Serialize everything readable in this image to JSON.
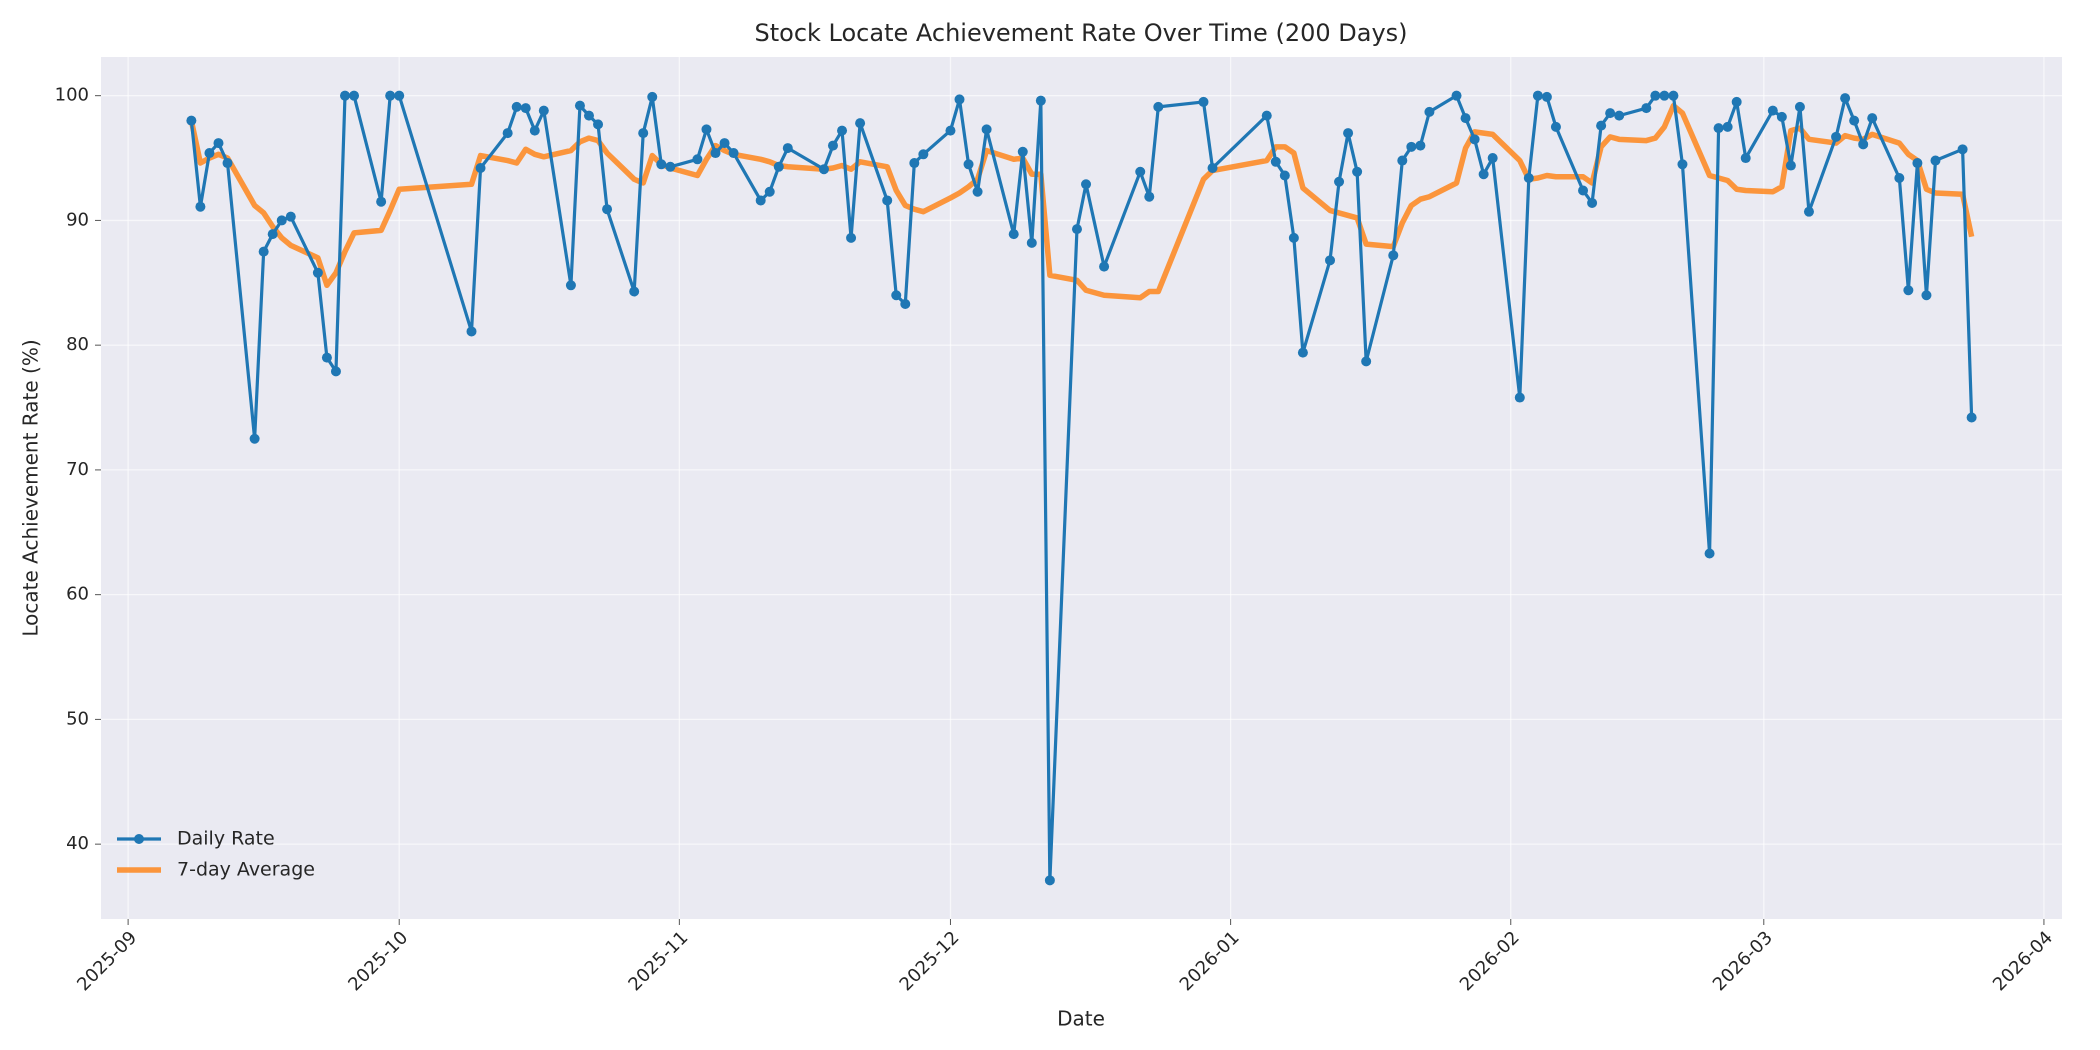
{
  "chart_data": {
    "type": "line",
    "title": "Stock Locate Achievement Rate Over Time (200 Days)",
    "x_label": "Date",
    "y_label": "Locate Achievement Rate (%)",
    "x": [
      "2025-09-08",
      "2025-09-09",
      "2025-09-10",
      "2025-09-11",
      "2025-09-12",
      "2025-09-15",
      "2025-09-16",
      "2025-09-17",
      "2025-09-18",
      "2025-09-19",
      "2025-09-22",
      "2025-09-23",
      "2025-09-24",
      "2025-09-25",
      "2025-09-26",
      "2025-09-29",
      "2025-09-30",
      "2025-10-01",
      "2025-10-09",
      "2025-10-10",
      "2025-10-13",
      "2025-10-14",
      "2025-10-15",
      "2025-10-16",
      "2025-10-17",
      "2025-10-20",
      "2025-10-21",
      "2025-10-22",
      "2025-10-23",
      "2025-10-24",
      "2025-10-27",
      "2025-10-28",
      "2025-10-29",
      "2025-10-30",
      "2025-10-31",
      "2025-11-03",
      "2025-11-04",
      "2025-11-05",
      "2025-11-06",
      "2025-11-07",
      "2025-11-10",
      "2025-11-11",
      "2025-11-12",
      "2025-11-13",
      "2025-11-17",
      "2025-11-18",
      "2025-11-19",
      "2025-11-20",
      "2025-11-21",
      "2025-11-24",
      "2025-11-25",
      "2025-11-26",
      "2025-11-27",
      "2025-11-28",
      "2025-12-01",
      "2025-12-02",
      "2025-12-03",
      "2025-12-04",
      "2025-12-05",
      "2025-12-08",
      "2025-12-09",
      "2025-12-10",
      "2025-12-11",
      "2025-12-12",
      "2025-12-15",
      "2025-12-16",
      "2025-12-18",
      "2025-12-22",
      "2025-12-23",
      "2025-12-24",
      "2025-12-29",
      "2025-12-30",
      "2026-01-05",
      "2026-01-06",
      "2026-01-07",
      "2026-01-08",
      "2026-01-09",
      "2026-01-12",
      "2026-01-13",
      "2026-01-14",
      "2026-01-15",
      "2026-01-16",
      "2026-01-19",
      "2026-01-20",
      "2026-01-21",
      "2026-01-22",
      "2026-01-23",
      "2026-01-26",
      "2026-01-27",
      "2026-01-28",
      "2026-01-29",
      "2026-01-30",
      "2026-02-02",
      "2026-02-03",
      "2026-02-04",
      "2026-02-05",
      "2026-02-06",
      "2026-02-09",
      "2026-02-10",
      "2026-02-11",
      "2026-02-12",
      "2026-02-13",
      "2026-02-16",
      "2026-02-17",
      "2026-02-18",
      "2026-02-19",
      "2026-02-20",
      "2026-02-23",
      "2026-02-24",
      "2026-02-25",
      "2026-02-26",
      "2026-02-27",
      "2026-03-02",
      "2026-03-03",
      "2026-03-04",
      "2026-03-05",
      "2026-03-06",
      "2026-03-09",
      "2026-03-10",
      "2026-03-11",
      "2026-03-12",
      "2026-03-13",
      "2026-03-16",
      "2026-03-17",
      "2026-03-18",
      "2026-03-19",
      "2026-03-20",
      "2026-03-23",
      "2026-03-24"
    ],
    "series": [
      {
        "name": "Daily Rate",
        "color": "#1f77b4",
        "marker": true,
        "values": [
          98.0,
          91.1,
          95.4,
          96.2,
          94.6,
          72.5,
          87.5,
          88.9,
          90.0,
          90.3,
          85.8,
          79.0,
          77.9,
          100,
          100,
          91.5,
          100,
          100,
          81.1,
          94.2,
          97.0,
          99.1,
          99.0,
          97.2,
          98.8,
          84.8,
          99.2,
          98.4,
          97.7,
          90.9,
          84.3,
          97.0,
          99.9,
          94.5,
          94.3,
          94.9,
          97.3,
          95.4,
          96.2,
          95.4,
          91.6,
          92.3,
          94.3,
          95.8,
          94.1,
          96.0,
          97.2,
          88.6,
          97.8,
          91.6,
          84.0,
          83.3,
          94.6,
          95.3,
          97.2,
          99.7,
          94.5,
          92.3,
          97.3,
          88.9,
          95.5,
          88.2,
          99.6,
          37.1,
          89.3,
          92.9,
          86.3,
          93.9,
          91.9,
          99.1,
          99.5,
          94.2,
          98.4,
          94.7,
          93.6,
          88.6,
          79.4,
          86.8,
          93.1,
          97.0,
          93.9,
          78.7,
          87.2,
          94.8,
          95.9,
          96.0,
          98.7,
          100,
          98.2,
          96.5,
          93.7,
          95.0,
          75.8,
          93.4,
          100,
          99.9,
          97.5,
          92.4,
          91.4,
          97.6,
          98.6,
          98.4,
          99.0,
          100,
          100,
          100,
          94.5,
          63.3,
          97.4,
          97.5,
          99.5,
          95.0,
          98.8,
          98.3,
          94.4,
          99.1,
          90.7,
          96.7,
          99.8,
          98.0,
          96.1,
          98.2,
          93.4,
          84.4,
          94.6,
          84.0,
          94.8,
          95.7,
          74.2
        ]
      },
      {
        "name": "7-day Average",
        "color": "#ff7f0e",
        "marker": false,
        "values": [
          98.0,
          94.6,
          95.0,
          95.3,
          95.0,
          91.2,
          90.6,
          89.5,
          88.6,
          88.0,
          87.0,
          84.8,
          85.8,
          87.5,
          89.0,
          89.2,
          90.8,
          92.5,
          92.9,
          95.2,
          94.8,
          94.6,
          95.7,
          95.3,
          95.1,
          95.6,
          96.3,
          96.6,
          96.4,
          95.4,
          93.3,
          93.0,
          95.2,
          94.5,
          94.2,
          93.6,
          94.9,
          96.0,
          95.6,
          95.3,
          94.9,
          94.7,
          94.4,
          94.3,
          94.1,
          94.2,
          94.4,
          94.1,
          94.7,
          94.3,
          92.4,
          91.2,
          90.9,
          90.7,
          91.8,
          92.2,
          92.7,
          93.3,
          95.6,
          94.9,
          95.0,
          93.7,
          93.7,
          85.6,
          85.2,
          84.4,
          84.0,
          83.8,
          84.3,
          84.3,
          93.3,
          94.0,
          94.8,
          95.9,
          95.9,
          95.4,
          92.6,
          90.8,
          90.6,
          90.4,
          90.2,
          88.1,
          87.9,
          89.8,
          91.2,
          91.7,
          91.9,
          93.0,
          95.8,
          97.1,
          97.0,
          96.9,
          94.8,
          93.3,
          93.4,
          93.6,
          93.5,
          93.5,
          93.0,
          95.9,
          96.7,
          96.5,
          96.4,
          96.6,
          97.5,
          99.2,
          98.6,
          93.6,
          93.4,
          93.2,
          92.5,
          92.4,
          92.3,
          92.7,
          97.2,
          97.4,
          96.5,
          96.2,
          96.8,
          96.6,
          96.5,
          96.9,
          96.2,
          95.3,
          94.8,
          92.5,
          92.2,
          92.1,
          88.7
        ]
      }
    ],
    "xlim": [
      "2025-08-29",
      "2026-04-03"
    ],
    "xticks": [
      {
        "value": "2025-09-01",
        "label": "2025-09"
      },
      {
        "value": "2025-10-01",
        "label": "2025-10"
      },
      {
        "value": "2025-11-01",
        "label": "2025-11"
      },
      {
        "value": "2025-12-01",
        "label": "2025-12"
      },
      {
        "value": "2026-01-01",
        "label": "2026-01"
      },
      {
        "value": "2026-02-01",
        "label": "2026-02"
      },
      {
        "value": "2026-03-01",
        "label": "2026-03"
      },
      {
        "value": "2026-04-01",
        "label": "2026-04"
      }
    ],
    "ylim": [
      34,
      103.1
    ],
    "yticks": [
      40,
      50,
      60,
      70,
      80,
      90,
      100
    ],
    "grid": true,
    "legend": "lower left"
  }
}
